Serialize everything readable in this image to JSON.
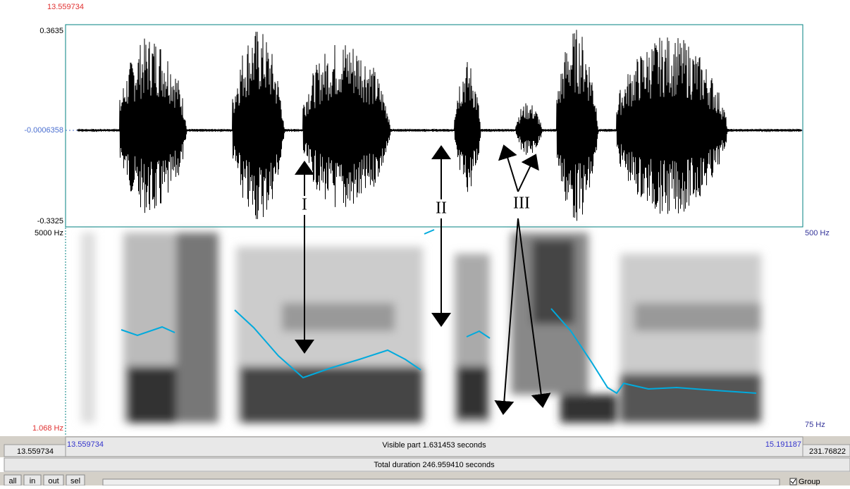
{
  "header": {
    "time_top": "13.559734"
  },
  "waveform": {
    "max": "0.3635",
    "mid": "-0.0006358",
    "min": "-0.3325"
  },
  "spectrogram": {
    "top_left": "5000 Hz",
    "bottom_left": "1.068 Hz",
    "top_right": "500 Hz",
    "bottom_right": "75 Hz"
  },
  "annotations": [
    "I",
    "II",
    "III"
  ],
  "time_axis": {
    "start": "13.559734",
    "visible": "Visible part 1.631453 seconds",
    "end": "15.191187"
  },
  "status": {
    "left": "13.559734",
    "right": "231.76822",
    "total": "Total duration 246.959410 seconds"
  },
  "buttons": [
    "all",
    "in",
    "out",
    "sel"
  ],
  "group": "Group"
}
